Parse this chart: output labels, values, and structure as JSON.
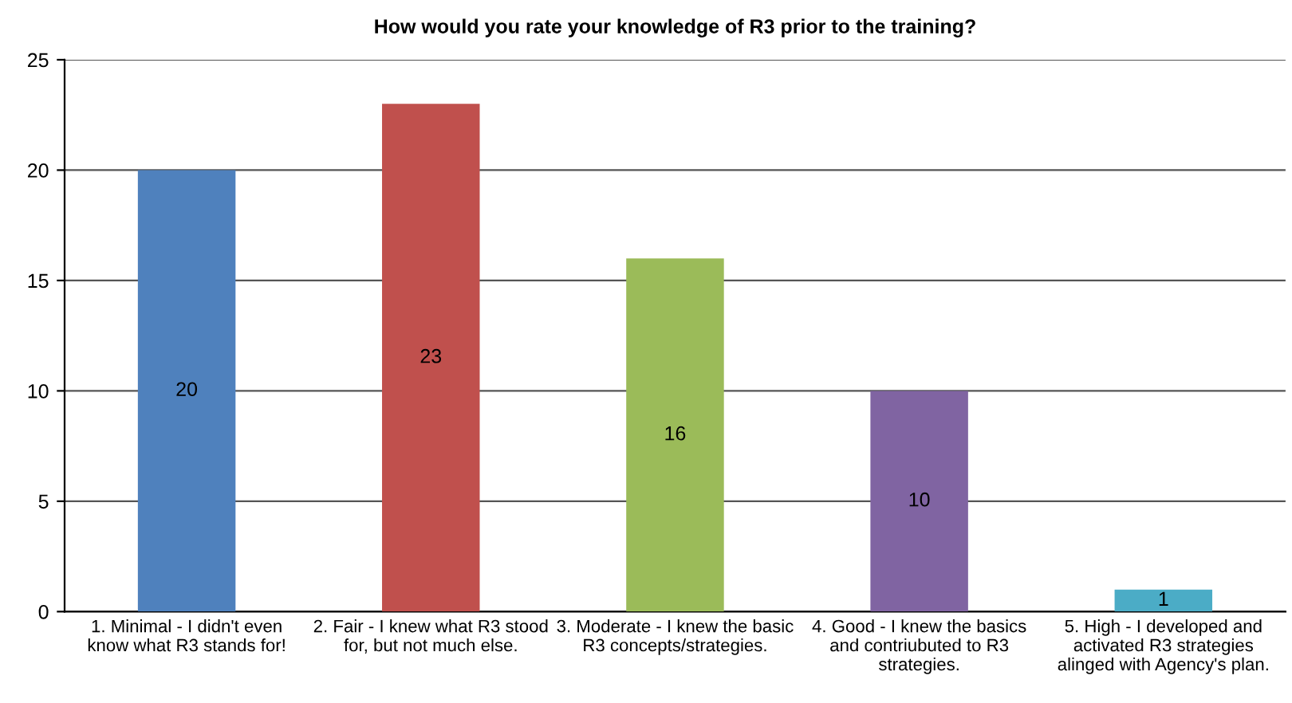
{
  "chart_data": {
    "type": "bar",
    "title": "How would you rate your knowledge of R3 prior to the training?",
    "categories": [
      "1. Minimal - I didn't even know what R3 stands for!",
      "2. Fair - I knew what R3 stood for, but not much else.",
      "3. Moderate - I knew the basic R3 concepts/strategies.",
      "4. Good - I knew the basics and contriubuted to R3 strategies.",
      "5. High - I developed and activated R3 strategies alinged with Agency's plan."
    ],
    "values": [
      20,
      23,
      16,
      10,
      1
    ],
    "colors": [
      "#4f81bd",
      "#c0504d",
      "#9bbb59",
      "#8064a2",
      "#4bacc6"
    ],
    "ylim": [
      0,
      25
    ],
    "yticks": [
      0,
      5,
      10,
      15,
      20,
      25
    ],
    "grid": "y",
    "data_labels": true
  }
}
